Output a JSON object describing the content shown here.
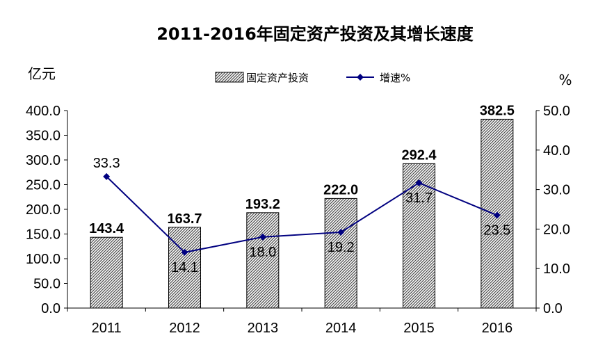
{
  "chart_data": {
    "type": "bar+line",
    "title": "2011-2016年固定资产投资及其增长速度",
    "categories": [
      "2011",
      "2012",
      "2013",
      "2014",
      "2015",
      "2016"
    ],
    "series": [
      {
        "name": "固定资产投资",
        "type": "bar",
        "axis": "left",
        "values": [
          143.4,
          163.7,
          193.2,
          222.0,
          292.4,
          382.5
        ],
        "labels": [
          "143.4",
          "163.7",
          "193.2",
          "222.0",
          "292.4",
          "382.5"
        ],
        "pattern": "diagonal-hatch",
        "color": "#555555"
      },
      {
        "name": "增速%",
        "type": "line",
        "axis": "right",
        "values": [
          33.3,
          14.1,
          18.0,
          19.2,
          31.7,
          23.5
        ],
        "labels": [
          "33.3",
          "14.1",
          "18.0",
          "19.2",
          "31.7",
          "23.5"
        ],
        "marker": "diamond",
        "color": "#000080"
      }
    ],
    "y_left": {
      "unit": "亿元",
      "range": [
        0,
        400
      ],
      "ticks": [
        "0.0",
        "50.0",
        "100.0",
        "150.0",
        "200.0",
        "250.0",
        "300.0",
        "350.0",
        "400.0"
      ]
    },
    "y_right": {
      "unit": "%",
      "range": [
        0,
        50
      ],
      "ticks": [
        "0.0",
        "10.0",
        "20.0",
        "30.0",
        "40.0",
        "50.0"
      ]
    },
    "grid": false,
    "legend_position": "top-center"
  }
}
